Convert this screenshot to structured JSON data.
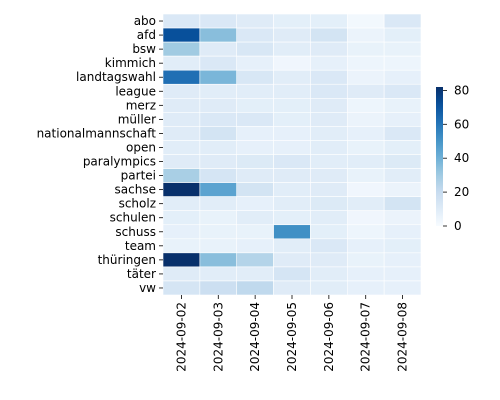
{
  "chart_data": {
    "type": "heatmap",
    "title": "",
    "xlabel": "",
    "ylabel": "",
    "x_categories": [
      "2024-09-02",
      "2024-09-03",
      "2024-09-04",
      "2024-09-05",
      "2024-09-06",
      "2024-09-07",
      "2024-09-08"
    ],
    "y_categories": [
      "abo",
      "afd",
      "bsw",
      "kimmich",
      "landtagswahl",
      "league",
      "merz",
      "müller",
      "nationalmannschaft",
      "open",
      "paralympics",
      "partei",
      "sachse",
      "scholz",
      "schulen",
      "schuss",
      "team",
      "thüringen",
      "täter",
      "vw"
    ],
    "values": [
      [
        12,
        12,
        10,
        8,
        8,
        2,
        12
      ],
      [
        72,
        35,
        12,
        10,
        15,
        5,
        8
      ],
      [
        30,
        10,
        13,
        9,
        10,
        6,
        6
      ],
      [
        9,
        12,
        7,
        3,
        7,
        4,
        4
      ],
      [
        62,
        38,
        13,
        9,
        12,
        5,
        7
      ],
      [
        10,
        9,
        9,
        9,
        12,
        10,
        12
      ],
      [
        10,
        10,
        8,
        8,
        10,
        4,
        6
      ],
      [
        10,
        12,
        12,
        8,
        10,
        5,
        7
      ],
      [
        10,
        15,
        7,
        7,
        9,
        7,
        12
      ],
      [
        9,
        9,
        7,
        7,
        9,
        6,
        8
      ],
      [
        10,
        10,
        11,
        12,
        9,
        9,
        11
      ],
      [
        28,
        14,
        10,
        10,
        10,
        6,
        9
      ],
      [
        82,
        45,
        15,
        9,
        10,
        3,
        5
      ],
      [
        9,
        9,
        7,
        9,
        11,
        9,
        15
      ],
      [
        8,
        6,
        9,
        8,
        9,
        3,
        5
      ],
      [
        7,
        6,
        6,
        52,
        8,
        4,
        7
      ],
      [
        6,
        6,
        7,
        9,
        12,
        7,
        8
      ],
      [
        82,
        35,
        25,
        10,
        10,
        6,
        7
      ],
      [
        10,
        9,
        9,
        14,
        9,
        7,
        7
      ],
      [
        14,
        18,
        22,
        10,
        9,
        7,
        7
      ]
    ],
    "colorbar": {
      "min": 0,
      "max": 82,
      "ticks": [
        0,
        20,
        40,
        60,
        80
      ]
    },
    "colormap": "Blues",
    "colors": {
      "low": "#f7fbff",
      "high": "#08306b",
      "cell_border": "#ffffff"
    }
  }
}
